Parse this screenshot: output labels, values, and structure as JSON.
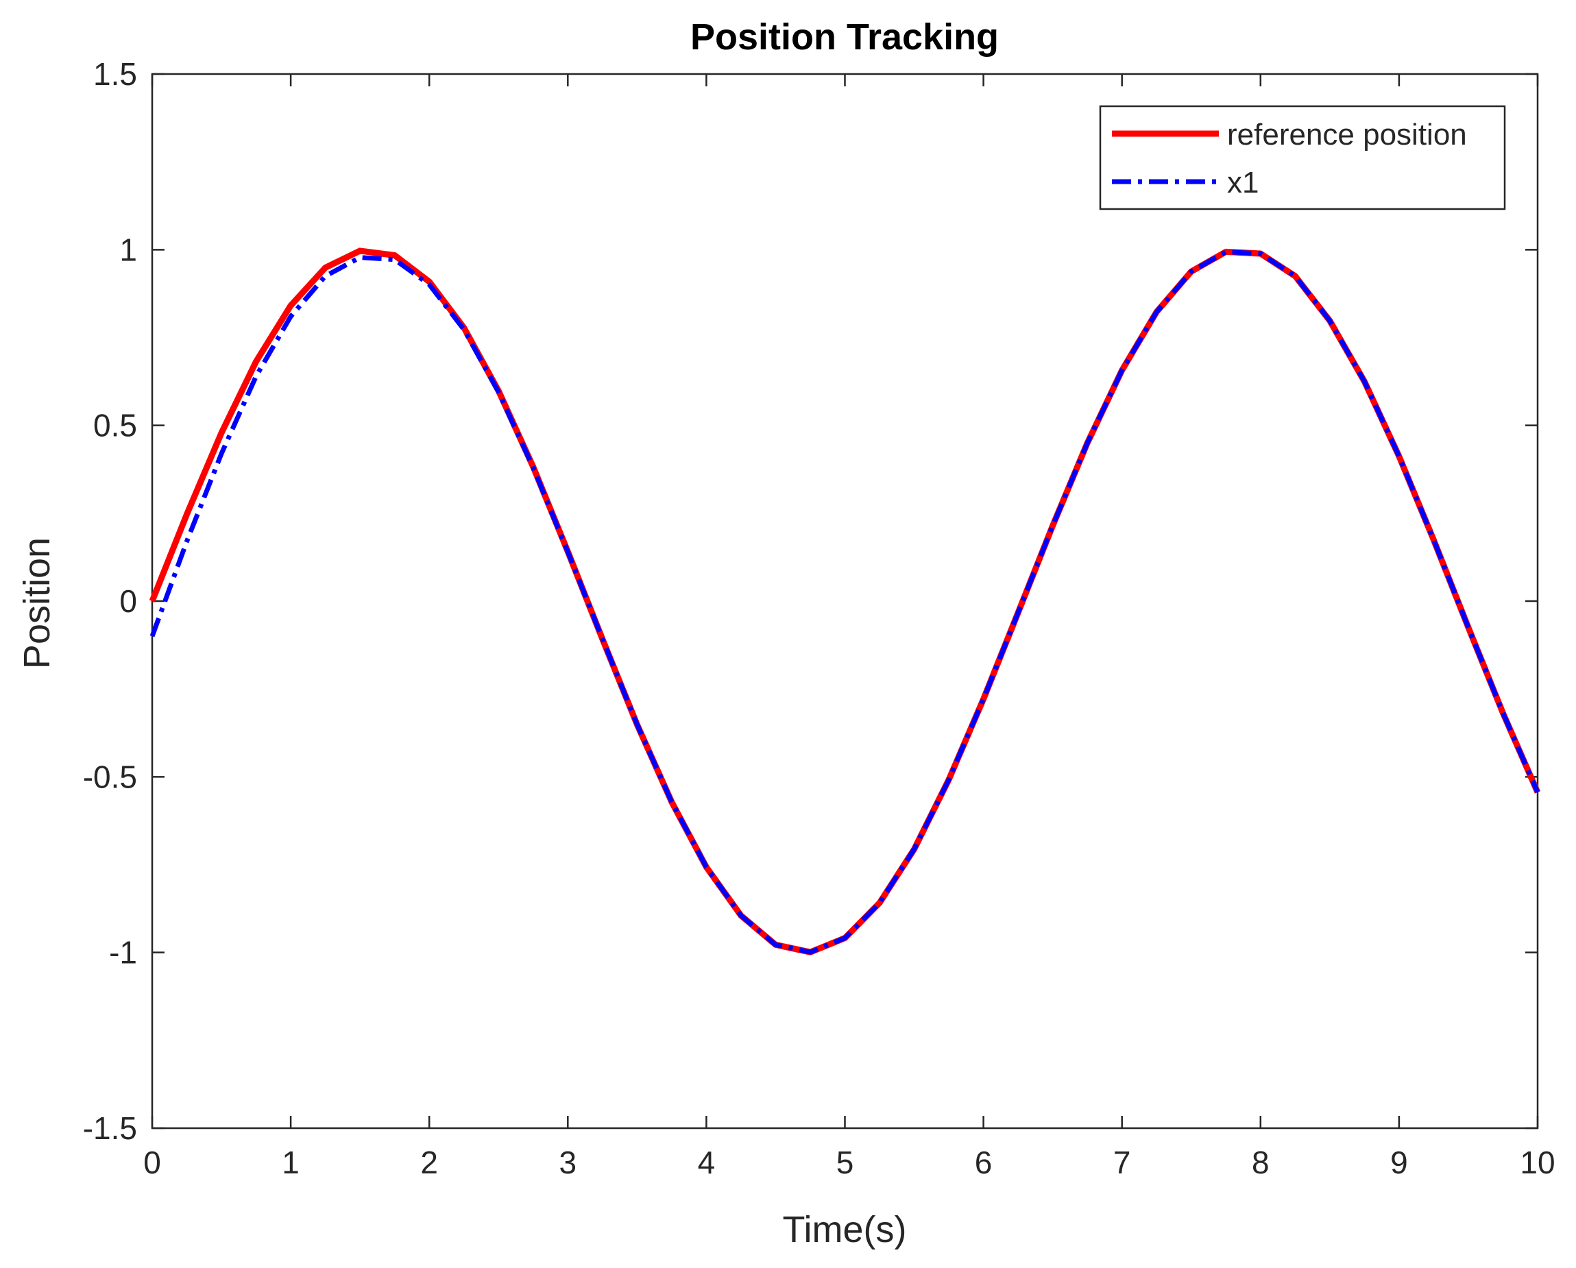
{
  "chart_data": {
    "type": "line",
    "title": "Position Tracking",
    "xlabel": "Time(s)",
    "ylabel": "Position",
    "xlim": [
      0,
      10
    ],
    "ylim": [
      -1.5,
      1.5
    ],
    "xticks": [
      0,
      1,
      2,
      3,
      4,
      5,
      6,
      7,
      8,
      9,
      10
    ],
    "yticks": [
      -1.5,
      -1,
      -0.5,
      0,
      0.5,
      1,
      1.5
    ],
    "xtick_labels": [
      "0",
      "1",
      "2",
      "3",
      "4",
      "5",
      "6",
      "7",
      "8",
      "9",
      "10"
    ],
    "ytick_labels": [
      "-1.5",
      "-1",
      "-0.5",
      "0",
      "0.5",
      "1",
      "1.5"
    ],
    "grid": false,
    "legend_position": "top-right",
    "series": [
      {
        "name": "reference position",
        "color": "#ff0000",
        "style": "solid",
        "x": [
          0,
          0.25,
          0.5,
          0.75,
          1,
          1.25,
          1.5,
          1.75,
          2,
          2.25,
          2.5,
          2.75,
          3,
          3.25,
          3.5,
          3.75,
          4,
          4.25,
          4.5,
          4.75,
          5,
          5.25,
          5.5,
          5.75,
          6,
          6.25,
          6.5,
          6.75,
          7,
          7.25,
          7.5,
          7.75,
          8,
          8.25,
          8.5,
          8.75,
          9,
          9.25,
          9.5,
          9.75,
          10
        ],
        "y": [
          0,
          0.247,
          0.479,
          0.682,
          0.841,
          0.949,
          0.997,
          0.984,
          0.909,
          0.778,
          0.598,
          0.382,
          0.141,
          -0.108,
          -0.351,
          -0.572,
          -0.757,
          -0.895,
          -0.978,
          -0.999,
          -0.959,
          -0.859,
          -0.706,
          -0.508,
          -0.279,
          -0.033,
          0.215,
          0.45,
          0.657,
          0.823,
          0.938,
          0.994,
          0.989,
          0.925,
          0.798,
          0.625,
          0.412,
          0.174,
          -0.075,
          -0.319,
          -0.544
        ]
      },
      {
        "name": "x1",
        "color": "#0000ff",
        "style": "dashdot",
        "x": [
          0,
          0.25,
          0.5,
          0.75,
          1,
          1.25,
          1.5,
          1.75,
          2,
          2.25,
          2.5,
          2.75,
          3,
          3.25,
          3.5,
          3.75,
          4,
          4.25,
          4.5,
          4.75,
          5,
          5.25,
          5.5,
          5.75,
          6,
          6.25,
          6.5,
          6.75,
          7,
          7.25,
          7.5,
          7.75,
          8,
          8.25,
          8.5,
          8.75,
          9,
          9.25,
          9.5,
          9.75,
          10
        ],
        "y": [
          -0.1,
          0.17,
          0.42,
          0.64,
          0.81,
          0.925,
          0.978,
          0.972,
          0.901,
          0.773,
          0.595,
          0.38,
          0.14,
          -0.108,
          -0.351,
          -0.572,
          -0.757,
          -0.895,
          -0.978,
          -0.999,
          -0.959,
          -0.859,
          -0.706,
          -0.508,
          -0.279,
          -0.033,
          0.215,
          0.45,
          0.657,
          0.823,
          0.938,
          0.994,
          0.989,
          0.925,
          0.798,
          0.625,
          0.412,
          0.174,
          -0.075,
          -0.319,
          -0.544
        ]
      }
    ]
  }
}
